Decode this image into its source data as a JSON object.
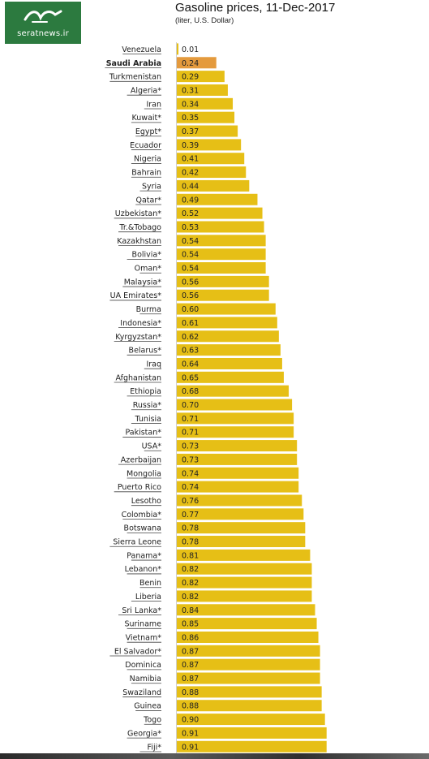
{
  "logo": {
    "site": "seratnews.ir"
  },
  "header": {
    "title": "Gasoline prices, 11-Dec-2017",
    "subtitle": "(liter, U.S. Dollar)"
  },
  "colors": {
    "bar": "#e6bf16",
    "highlight": "#e49a3d",
    "label": "#222222",
    "underline": "#444444",
    "value_text": "#222222",
    "logo_bg": "#2c7a3f"
  },
  "chart_data": {
    "type": "bar",
    "orientation": "horizontal",
    "title": "Gasoline prices, 11-Dec-2017",
    "subtitle": "(liter, U.S. Dollar)",
    "highlighted_category": "Saudi Arabia",
    "categories": [
      "Venezuela",
      "Saudi Arabia",
      "Turkmenistan",
      "Algeria*",
      "Iran",
      "Kuwait*",
      "Egypt*",
      "Ecuador",
      "Nigeria",
      "Bahrain",
      "Syria",
      "Qatar*",
      "Uzbekistan*",
      "Tr.&Tobago",
      "Kazakhstan",
      "Bolivia*",
      "Oman*",
      "Malaysia*",
      "UA Emirates*",
      "Burma",
      "Indonesia*",
      "Kyrgyzstan*",
      "Belarus*",
      "Iraq",
      "Afghanistan",
      "Ethiopia",
      "Russia*",
      "Tunisia",
      "Pakistan*",
      "USA*",
      "Azerbaijan",
      "Mongolia",
      "Puerto Rico",
      "Lesotho",
      "Colombia*",
      "Botswana",
      "Sierra Leone",
      "Panama*",
      "Lebanon*",
      "Benin",
      "Liberia",
      "Sri Lanka*",
      "Suriname",
      "Vietnam*",
      "El Salvador*",
      "Dominica",
      "Namibia",
      "Swaziland",
      "Guinea",
      "Togo",
      "Georgia*",
      "Fiji*"
    ],
    "values": [
      0.01,
      0.24,
      0.29,
      0.31,
      0.34,
      0.35,
      0.37,
      0.39,
      0.41,
      0.42,
      0.44,
      0.49,
      0.52,
      0.53,
      0.54,
      0.54,
      0.54,
      0.56,
      0.56,
      0.6,
      0.61,
      0.62,
      0.63,
      0.64,
      0.65,
      0.68,
      0.7,
      0.71,
      0.71,
      0.73,
      0.73,
      0.74,
      0.74,
      0.76,
      0.77,
      0.78,
      0.78,
      0.81,
      0.82,
      0.82,
      0.82,
      0.84,
      0.85,
      0.86,
      0.87,
      0.87,
      0.87,
      0.88,
      0.88,
      0.9,
      0.91,
      0.91
    ],
    "value_labels": [
      "0.01",
      "0.24",
      "0.29",
      "0.31",
      "0.34",
      "0.35",
      "0.37",
      "0.39",
      "0.41",
      "0.42",
      "0.44",
      "0.49",
      "0.52",
      "0.53",
      "0.54",
      "0.54",
      "0.54",
      "0.56",
      "0.56",
      "0.60",
      "0.61",
      "0.62",
      "0.63",
      "0.64",
      "0.65",
      "0.68",
      "0.70",
      "0.71",
      "0.71",
      "0.73",
      "0.73",
      "0.74",
      "0.74",
      "0.76",
      "0.77",
      "0.78",
      "0.78",
      "0.81",
      "0.82",
      "0.82",
      "0.82",
      "0.84",
      "0.85",
      "0.86",
      "0.87",
      "0.87",
      "0.87",
      "0.88",
      "0.88",
      "0.90",
      "0.91",
      "0.91"
    ],
    "xlim": [
      0,
      1
    ],
    "xlabel": "",
    "ylabel": "",
    "grid": false,
    "legend": "none"
  }
}
